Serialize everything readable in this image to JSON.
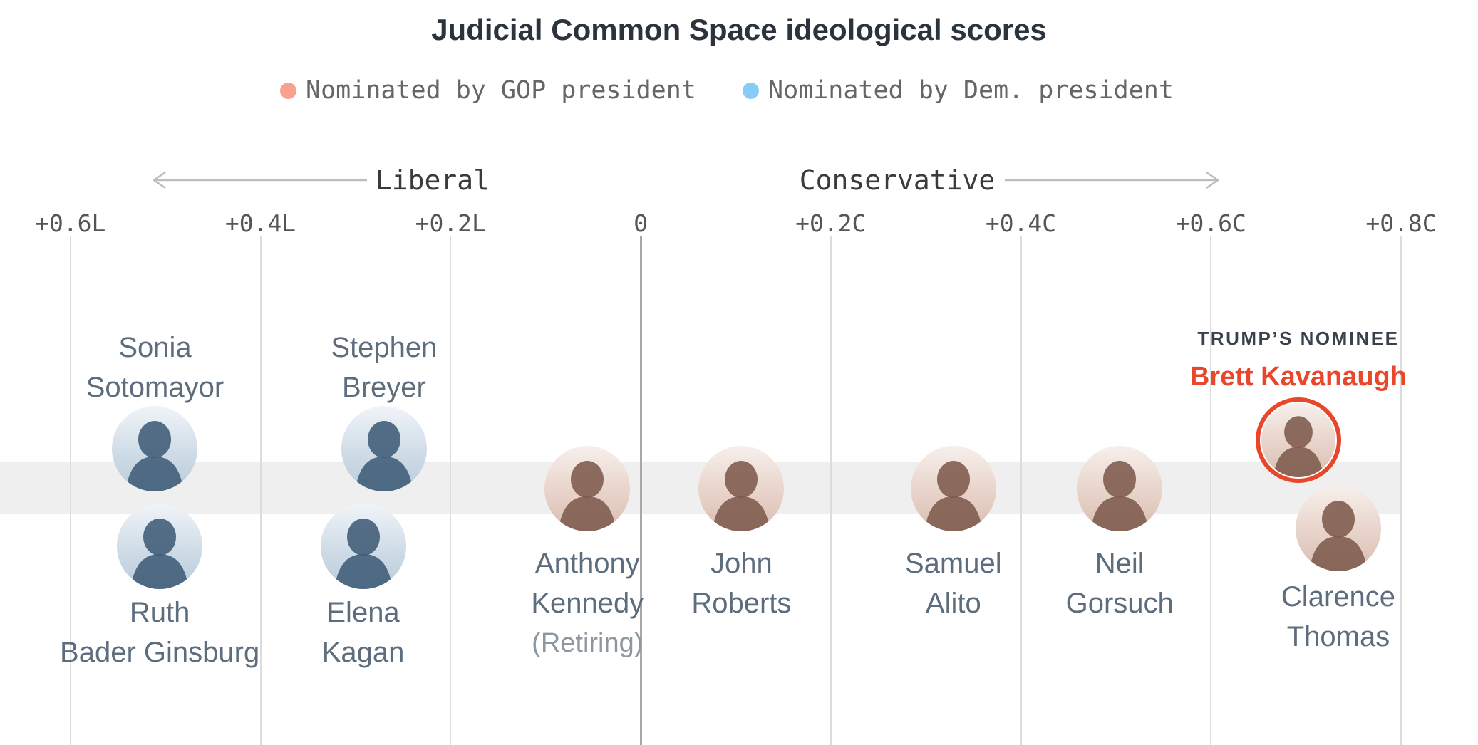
{
  "title": "Judicial Common Space ideological scores",
  "legend": [
    {
      "label": "Nominated by GOP president",
      "color": "#f9a08f",
      "party": "gop"
    },
    {
      "label": "Nominated by Dem. president",
      "color": "#85ccf6",
      "party": "dem"
    }
  ],
  "chart_data": {
    "type": "scatter",
    "title": "Judicial Common Space ideological scores",
    "x_axis": {
      "range": [
        -0.675,
        0.88
      ],
      "liberal_direction_label": "Liberal",
      "conservative_direction_label": "Conservative",
      "ticks": [
        {
          "label": "+0.6L",
          "value": -0.6
        },
        {
          "label": "+0.4L",
          "value": -0.4
        },
        {
          "label": "+0.2L",
          "value": -0.2
        },
        {
          "label": "0",
          "value": 0
        },
        {
          "label": "+0.2C",
          "value": 0.2
        },
        {
          "label": "+0.4C",
          "value": 0.4
        },
        {
          "label": "+0.6C",
          "value": 0.6
        },
        {
          "label": "+0.8C",
          "value": 0.8
        }
      ],
      "grid": true
    },
    "legend_position": "top",
    "colors": {
      "gop": "#f9a08f",
      "dem": "#85ccf6",
      "highlight": "#e8472b"
    },
    "points": [
      {
        "name": "Sonia Sotomayor",
        "label_lines": [
          "Sonia",
          "Sotomayor"
        ],
        "score": -0.511,
        "party": "dem",
        "row": "top",
        "label_position": "above"
      },
      {
        "name": "Ruth Bader Ginsburg",
        "label_lines": [
          "Ruth",
          "Bader Ginsburg"
        ],
        "score": -0.506,
        "party": "dem",
        "row": "bottom",
        "label_position": "below"
      },
      {
        "name": "Stephen Breyer",
        "label_lines": [
          "Stephen",
          "Breyer"
        ],
        "score": -0.27,
        "party": "dem",
        "row": "top",
        "label_position": "above"
      },
      {
        "name": "Elena Kagan",
        "label_lines": [
          "Elena",
          "Kagan"
        ],
        "score": -0.292,
        "party": "dem",
        "row": "bottom",
        "label_position": "below"
      },
      {
        "name": "Anthony Kennedy",
        "label_lines": [
          "Anthony",
          "Kennedy"
        ],
        "note": "(Retiring)",
        "score": -0.056,
        "party": "gop",
        "row": "mid",
        "label_position": "below"
      },
      {
        "name": "John Roberts",
        "label_lines": [
          "John",
          "Roberts"
        ],
        "score": 0.106,
        "party": "gop",
        "row": "mid",
        "label_position": "below"
      },
      {
        "name": "Samuel Alito",
        "label_lines": [
          "Samuel",
          "Alito"
        ],
        "score": 0.329,
        "party": "gop",
        "row": "mid",
        "label_position": "below"
      },
      {
        "name": "Neil Gorsuch",
        "label_lines": [
          "Neil",
          "Gorsuch"
        ],
        "score": 0.504,
        "party": "gop",
        "row": "mid",
        "label_position": "below"
      },
      {
        "name": "Brett Kavanaugh",
        "label_lines": [
          "Brett Kavanaugh"
        ],
        "kicker": "TRUMP’S NOMINEE",
        "score": 0.692,
        "party": "gop",
        "row": "kavanaugh",
        "label_position": "above",
        "highlight": true
      },
      {
        "name": "Clarence Thomas",
        "label_lines": [
          "Clarence",
          "Thomas"
        ],
        "score": 0.734,
        "party": "gop",
        "row": "thomas",
        "label_position": "below"
      }
    ]
  }
}
